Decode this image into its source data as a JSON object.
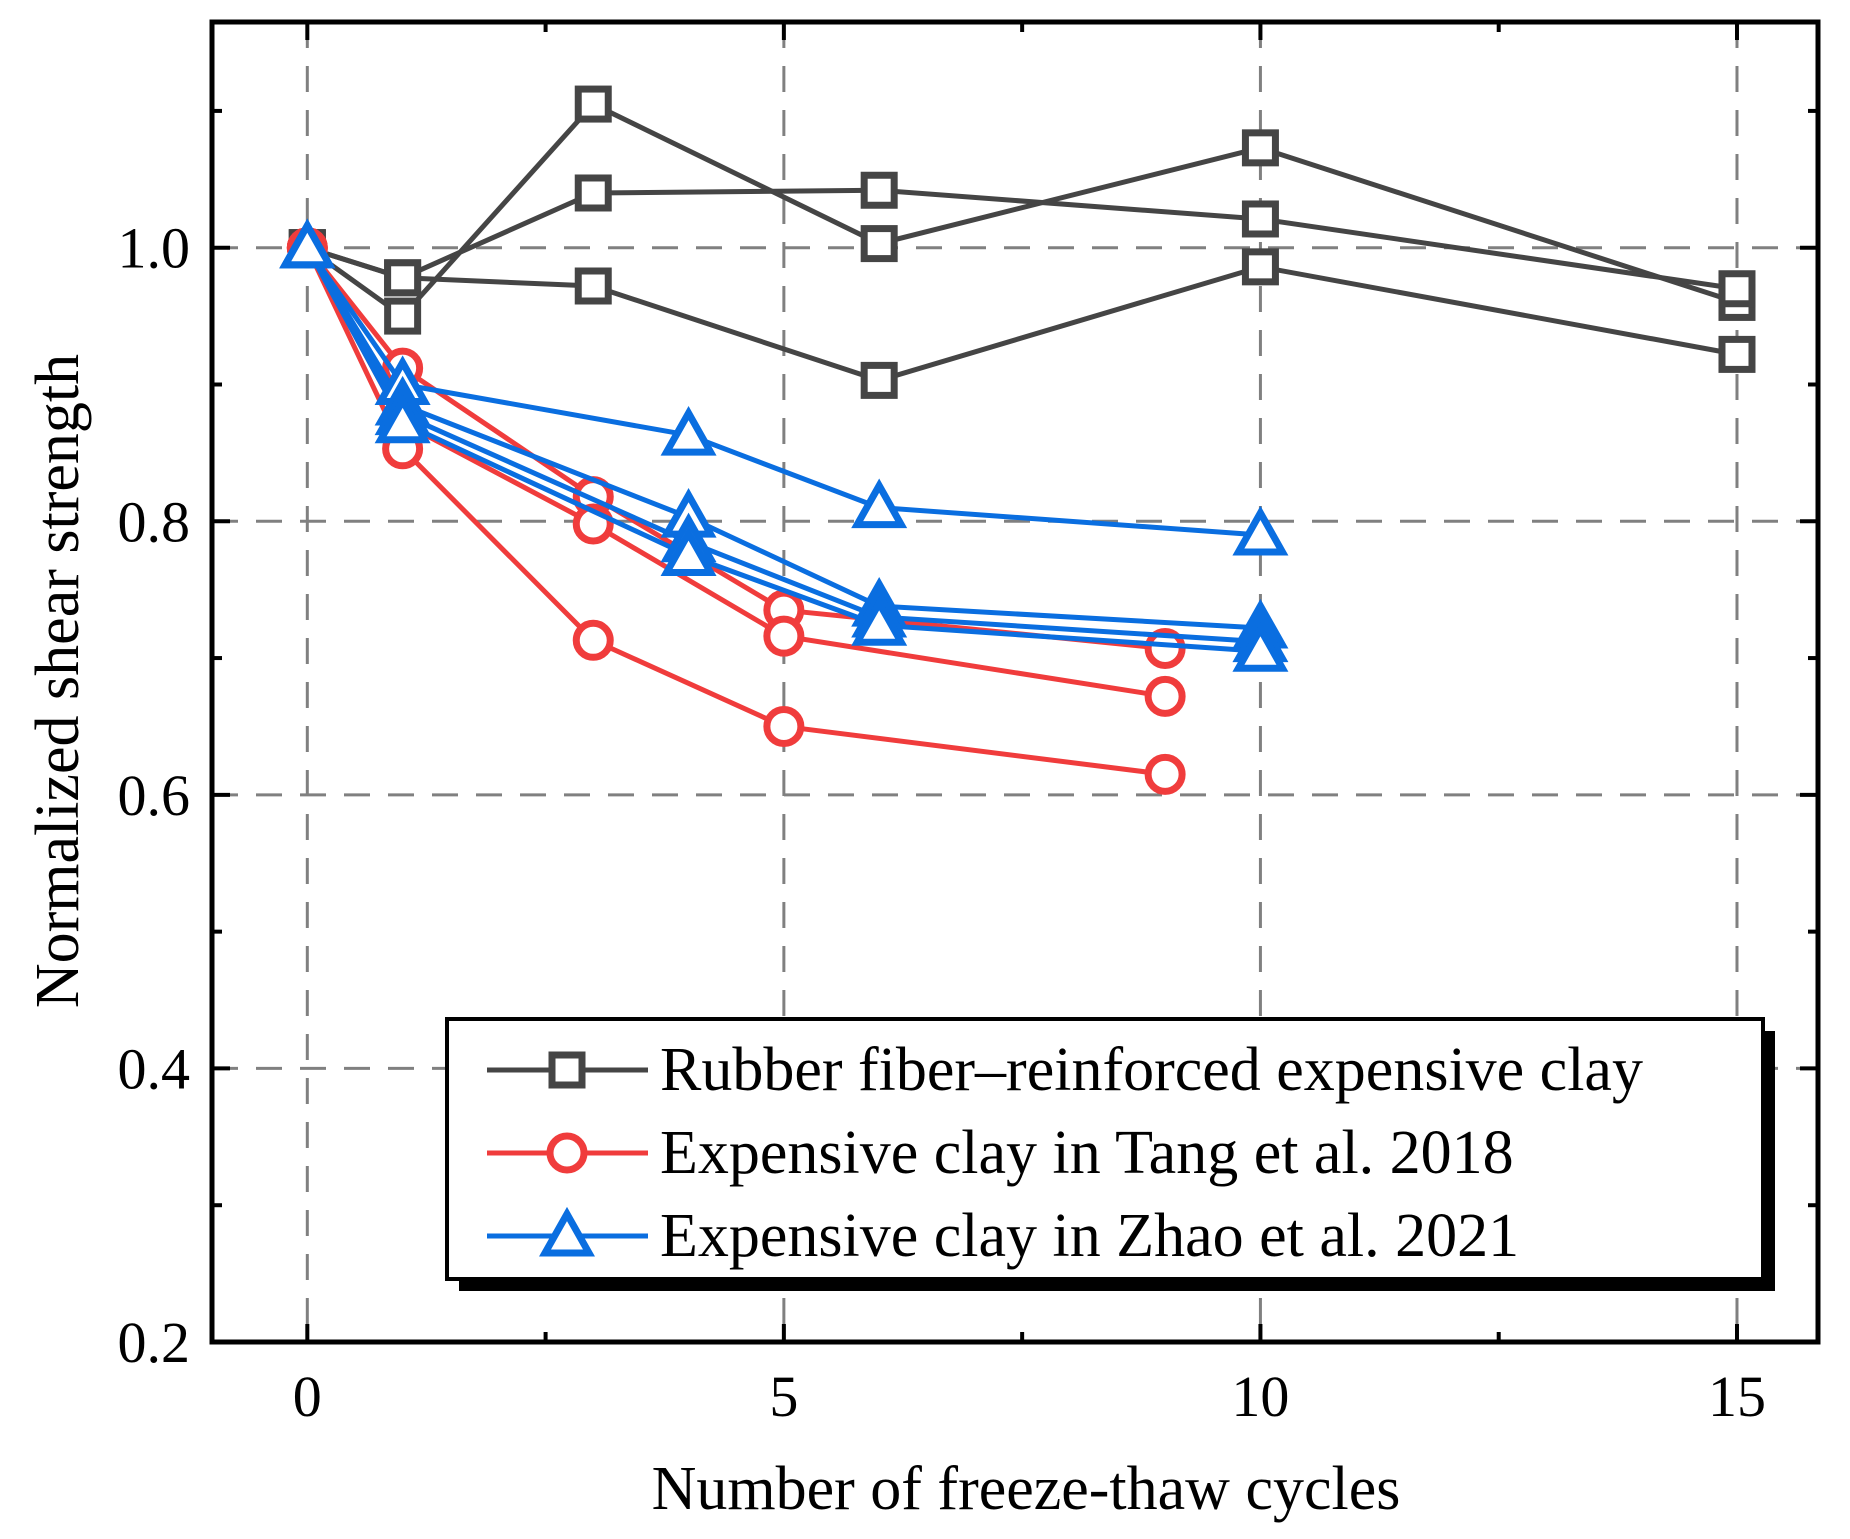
{
  "chart_data": {
    "type": "line",
    "title": "",
    "xlabel": "Number of freeze-thaw cycles",
    "ylabel": "Normalized shear strength",
    "xlim": [
      -1,
      15.85
    ],
    "ylim": [
      0.2,
      1.165
    ],
    "xticks": [
      0,
      5,
      10,
      15
    ],
    "xtick_labels": [
      "0",
      "5",
      "10",
      "15"
    ],
    "yticks": [
      0.2,
      0.4,
      0.6,
      0.8,
      1.0
    ],
    "ytick_labels": [
      "0.2",
      "0.4",
      "0.6",
      "0.8",
      "1.0"
    ],
    "x_minor_ticks": [
      2.5,
      7.5,
      12.5
    ],
    "y_minor_ticks": [
      0.3,
      0.5,
      0.7,
      0.9,
      1.1
    ],
    "grid": true,
    "legend_position": "bottom-right",
    "groups": [
      {
        "name": "Rubber fiber–reinforced expensive clay",
        "color": "#454545",
        "marker": "square",
        "series": [
          {
            "x": [
              0,
              1,
              3,
              6,
              10,
              15
            ],
            "y": [
              1.0,
              0.95,
              1.105,
              1.003,
              1.073,
              0.96
            ]
          },
          {
            "x": [
              0,
              1,
              3,
              6,
              10,
              15
            ],
            "y": [
              1.0,
              0.978,
              1.04,
              1.042,
              1.021,
              0.97
            ]
          },
          {
            "x": [
              0,
              1,
              3,
              6,
              10,
              15
            ],
            "y": [
              1.0,
              0.978,
              0.972,
              0.903,
              0.986,
              0.922
            ]
          }
        ]
      },
      {
        "name": "Expensive clay in Tang et al. 2018",
        "color": "#f03c3c",
        "marker": "circle",
        "series": [
          {
            "x": [
              0,
              1,
              3,
              5,
              9
            ],
            "y": [
              1.0,
              0.912,
              0.818,
              0.735,
              0.707
            ]
          },
          {
            "x": [
              0,
              1,
              3,
              5,
              9
            ],
            "y": [
              1.0,
              0.872,
              0.798,
              0.716,
              0.672
            ]
          },
          {
            "x": [
              0,
              1,
              3,
              5,
              9
            ],
            "y": [
              1.0,
              0.853,
              0.713,
              0.65,
              0.615
            ]
          }
        ]
      },
      {
        "name": "Expensive clay in Zhao et al. 2021",
        "color": "#0a6ee0",
        "marker": "triangle",
        "series": [
          {
            "x": [
              0,
              1,
              4,
              6,
              10
            ],
            "y": [
              1.0,
              0.9,
              0.863,
              0.81,
              0.79
            ]
          },
          {
            "x": [
              0,
              1,
              4,
              6,
              10
            ],
            "y": [
              1.0,
              0.885,
              0.803,
              0.738,
              0.722
            ]
          },
          {
            "x": [
              0,
              1,
              4,
              6,
              10
            ],
            "y": [
              1.0,
              0.878,
              0.785,
              0.73,
              0.712
            ]
          },
          {
            "x": [
              0,
              1,
              4,
              6,
              10
            ],
            "y": [
              1.0,
              0.872,
              0.775,
              0.724,
              0.705
            ]
          }
        ]
      }
    ]
  }
}
